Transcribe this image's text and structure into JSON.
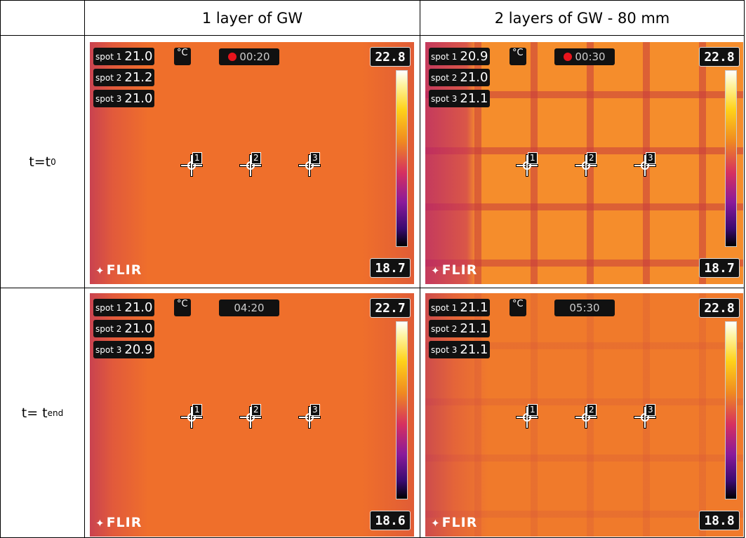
{
  "table": {
    "columns": [
      "1 layer of GW",
      "2 layers of GW - 80 mm"
    ],
    "rows": [
      {
        "label": {
          "main": "t=t",
          "sub": "0"
        },
        "images": [
          {
            "spots": [
              {
                "name": "spot 1",
                "value": "21.0"
              },
              {
                "name": "spot 2",
                "value": "21.2"
              },
              {
                "name": "spot 3",
                "value": "21.0"
              }
            ],
            "unit": "°C",
            "recording": true,
            "time": "00:20",
            "max": "22.8",
            "min": "18.7",
            "logo": "FLIR",
            "markers": [
              "1",
              "2",
              "3"
            ],
            "pattern": "plain"
          },
          {
            "spots": [
              {
                "name": "spot 1",
                "value": "20.9"
              },
              {
                "name": "spot 2",
                "value": "21.0"
              },
              {
                "name": "spot 3",
                "value": "21.1"
              }
            ],
            "unit": "°C",
            "recording": true,
            "time": "00:30",
            "max": "22.8",
            "min": "18.7",
            "logo": "FLIR",
            "markers": [
              "1",
              "2",
              "3"
            ],
            "pattern": "grid"
          }
        ]
      },
      {
        "label": {
          "main": "t= t",
          "sub": "end"
        },
        "images": [
          {
            "spots": [
              {
                "name": "spot 1",
                "value": "21.0"
              },
              {
                "name": "spot 2",
                "value": "21.0"
              },
              {
                "name": "spot 3",
                "value": "20.9"
              }
            ],
            "unit": "°C",
            "recording": false,
            "time": "04:20",
            "max": "22.7",
            "min": "18.6",
            "logo": "FLIR",
            "markers": [
              "1",
              "2",
              "3"
            ],
            "pattern": "plain"
          },
          {
            "spots": [
              {
                "name": "spot 1",
                "value": "21.1"
              },
              {
                "name": "spot 2",
                "value": "21.1"
              },
              {
                "name": "spot 3",
                "value": "21.1"
              }
            ],
            "unit": "°C",
            "recording": false,
            "time": "05:30",
            "max": "22.8",
            "min": "18.8",
            "logo": "FLIR",
            "markers": [
              "1",
              "2",
              "3"
            ],
            "pattern": "faint-grid"
          }
        ]
      }
    ]
  }
}
